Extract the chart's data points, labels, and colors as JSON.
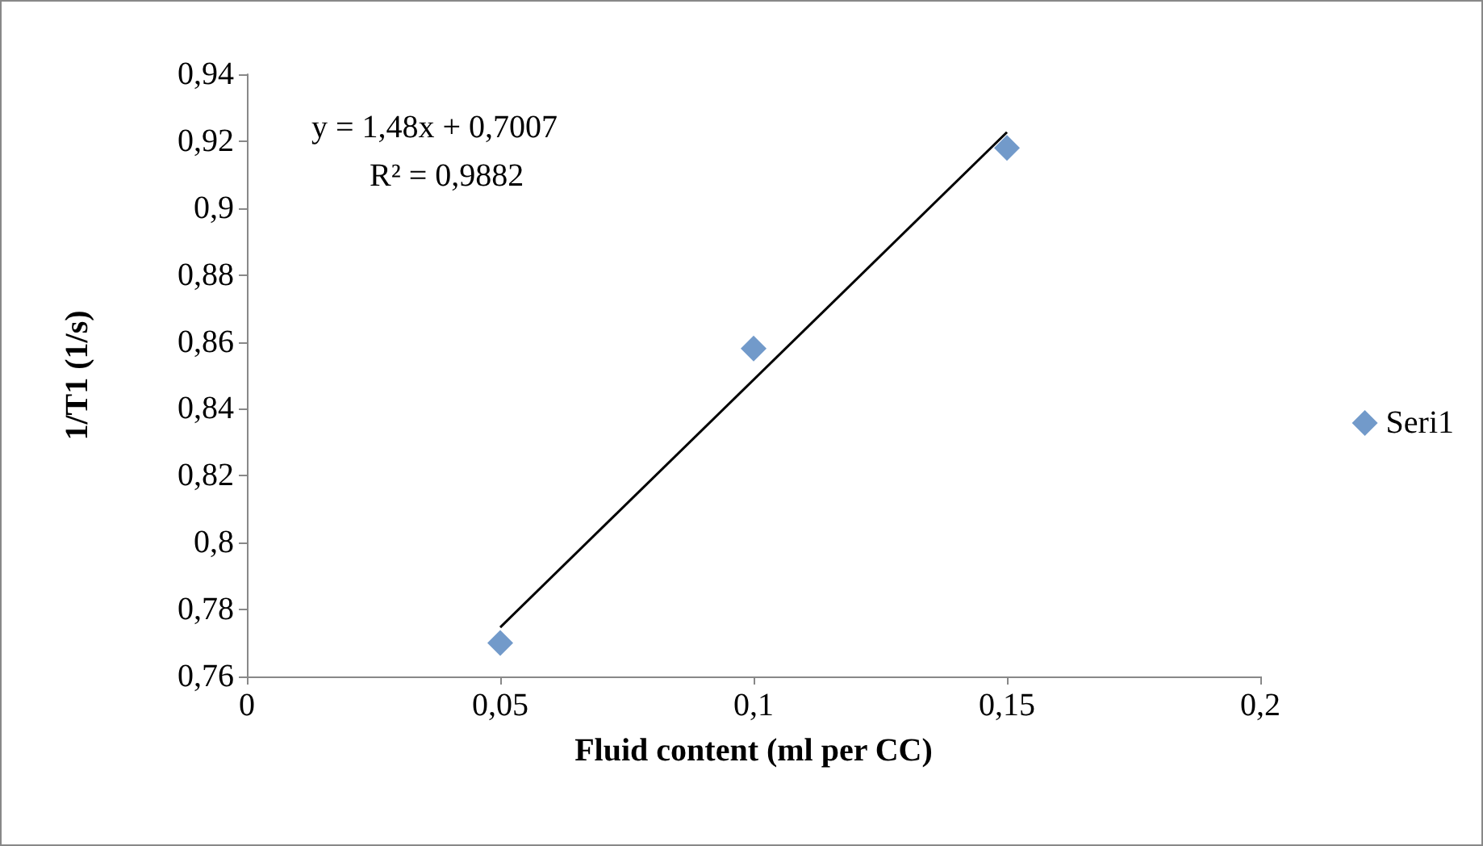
{
  "chart_data": {
    "type": "scatter",
    "xlabel": "Fluid content (ml per CC)",
    "ylabel": "1/T1 (1/s)",
    "xlim": [
      0,
      0.2
    ],
    "ylim": [
      0.76,
      0.94
    ],
    "xticks": [
      {
        "value": 0,
        "label": "0"
      },
      {
        "value": 0.05,
        "label": "0,05"
      },
      {
        "value": 0.1,
        "label": "0,1"
      },
      {
        "value": 0.15,
        "label": "0,15"
      },
      {
        "value": 0.2,
        "label": "0,2"
      }
    ],
    "yticks": [
      {
        "value": 0.76,
        "label": "0,76"
      },
      {
        "value": 0.78,
        "label": "0,78"
      },
      {
        "value": 0.8,
        "label": "0,8"
      },
      {
        "value": 0.82,
        "label": "0,82"
      },
      {
        "value": 0.84,
        "label": "0,84"
      },
      {
        "value": 0.86,
        "label": "0,86"
      },
      {
        "value": 0.88,
        "label": "0,88"
      },
      {
        "value": 0.9,
        "label": "0,9"
      },
      {
        "value": 0.92,
        "label": "0,92"
      },
      {
        "value": 0.94,
        "label": "0,94"
      }
    ],
    "series": [
      {
        "name": "Seri1",
        "color": "#4f81bd",
        "marker": "diamond",
        "x": [
          0.05,
          0.1,
          0.15
        ],
        "values": [
          0.77,
          0.858,
          0.918
        ]
      },
      {
        "type": "line",
        "color": "#000000",
        "marker": "none",
        "line_style": "solid",
        "x": [
          0.05,
          0.15
        ],
        "values": [
          0.7747,
          0.9227
        ]
      }
    ],
    "annotations": [
      "y = 1,48x + 0,7007",
      "R² = 0,9882"
    ],
    "grid": false,
    "legend": "right"
  }
}
